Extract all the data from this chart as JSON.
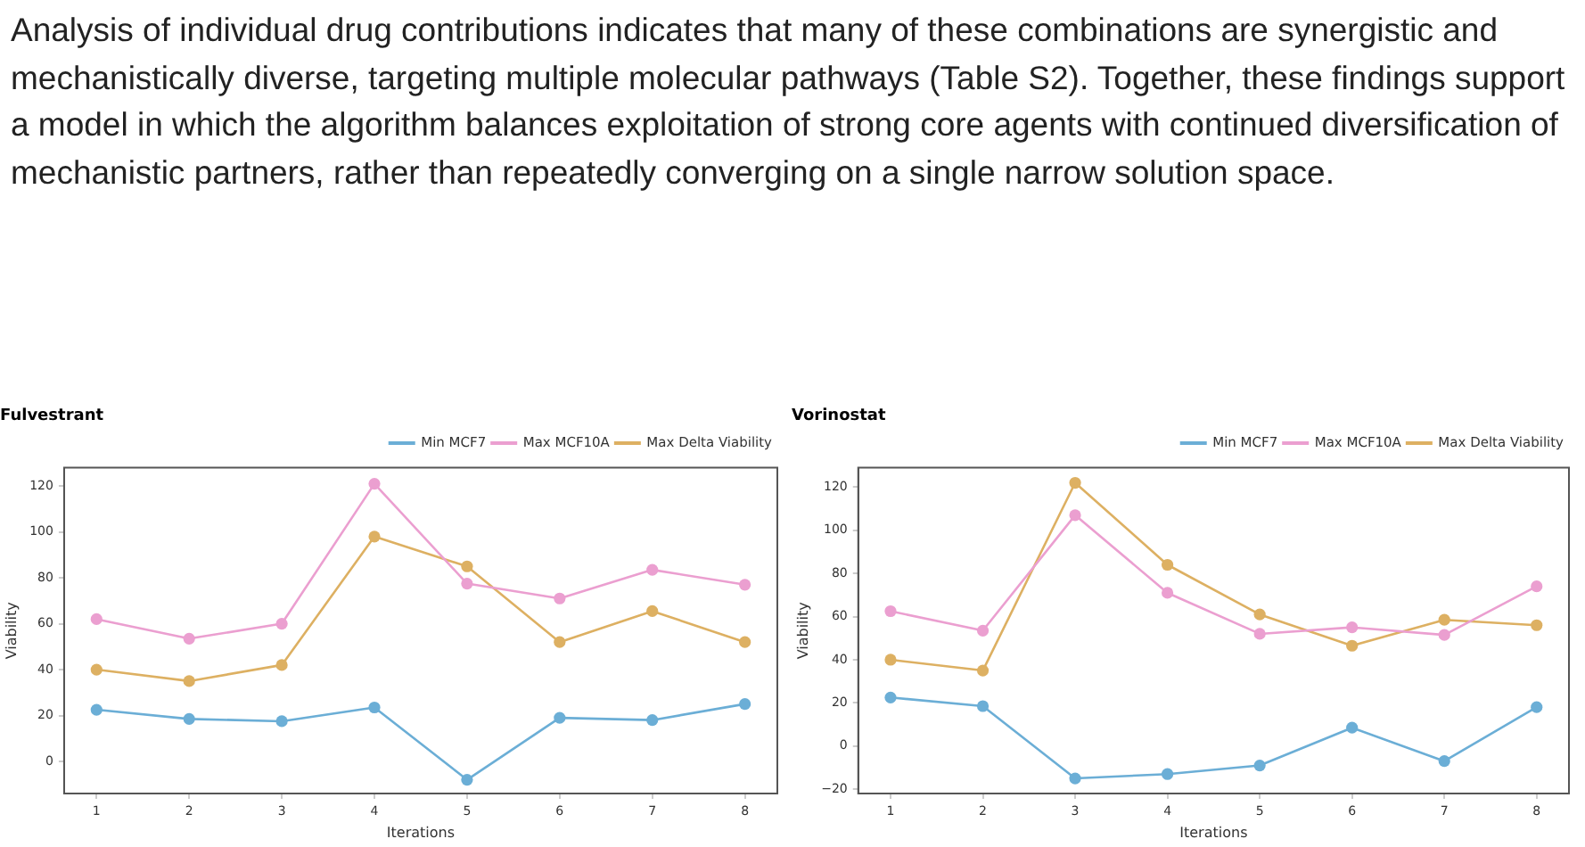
{
  "chart_data": [
    {
      "type": "line",
      "title": "Fulvestrant",
      "xlabel": "Iterations",
      "ylabel": "Viability",
      "x": [
        1,
        2,
        3,
        4,
        5,
        6,
        7,
        8
      ],
      "xlim": [
        0.65,
        8.35
      ],
      "xticks": [
        1,
        2,
        3,
        4,
        5,
        6,
        7,
        8
      ],
      "ylim": [
        -14,
        128
      ],
      "yticks": [
        0,
        20,
        40,
        60,
        80,
        100,
        120
      ],
      "grid": false,
      "legend": "top right",
      "marker": "circle",
      "line_style": "solid",
      "annotations": [
        "Analysis of individual drug contributions indicates that many of these combinations are synergistic and mechanistically diverse, targeting multiple molecular pathways (Table S2). Together, these findings support a model in which the algorithm balances exploitation of strong core agents with continued diversification of mechanistic partners, rather than repeatedly converging on a single narrow solution space."
      ],
      "series": [
        {
          "name": "Min MCF7",
          "color": "#6baed6",
          "values": [
            22.5,
            18.5,
            17.5,
            23.5,
            -8,
            19,
            18,
            25
          ]
        },
        {
          "name": "Max MCF10A",
          "color": "#eb9fd0",
          "values": [
            62,
            53.5,
            60,
            121,
            77.5,
            71,
            83.5,
            77
          ]
        },
        {
          "name": "Max Delta Viability",
          "color": "#ddb062",
          "values": [
            40,
            35,
            42,
            98,
            85,
            52,
            65.5,
            52
          ]
        }
      ]
    },
    {
      "type": "line",
      "title": "Vorinostat",
      "xlabel": "Iterations",
      "ylabel": "Viability",
      "x": [
        1,
        2,
        3,
        4,
        5,
        6,
        7,
        8
      ],
      "xlim": [
        0.65,
        8.35
      ],
      "xticks": [
        1,
        2,
        3,
        4,
        5,
        6,
        7,
        8
      ],
      "ylim": [
        -22,
        129
      ],
      "yticks": [
        -20,
        0,
        20,
        40,
        60,
        80,
        100,
        120
      ],
      "grid": false,
      "legend": "top right",
      "marker": "circle",
      "line_style": "solid",
      "series": [
        {
          "name": "Min MCF7",
          "color": "#6baed6",
          "values": [
            22.5,
            18.5,
            -15,
            -13,
            -9,
            8.5,
            -7,
            18
          ]
        },
        {
          "name": "Max MCF10A",
          "color": "#eb9fd0",
          "values": [
            62.5,
            53.5,
            107,
            71,
            52,
            55,
            51.5,
            74
          ]
        },
        {
          "name": "Max Delta Viability",
          "color": "#ddb062",
          "values": [
            40,
            35,
            122,
            84,
            61,
            46.5,
            58.5,
            56
          ]
        }
      ]
    }
  ]
}
